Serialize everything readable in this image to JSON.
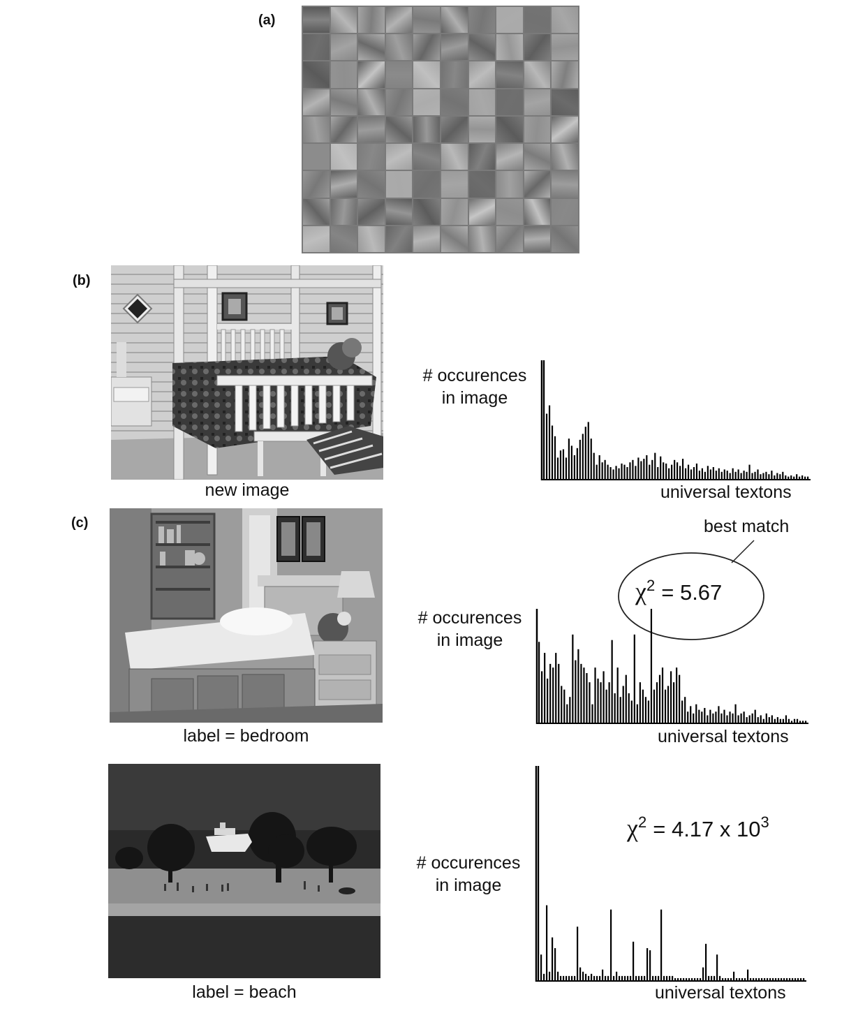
{
  "panels": {
    "a_label": "(a)",
    "b_label": "(b)",
    "c_label": "(c)"
  },
  "captions": {
    "new_image": "new image",
    "bedroom": "label = bedroom",
    "beach": "label = beach"
  },
  "axis": {
    "ylabel_line1": "# occurences",
    "ylabel_line2": "in image",
    "xlabel": "universal textons"
  },
  "annotations": {
    "best_match": "best match",
    "chi_symbol": "χ",
    "chi_exp": "2",
    "chi_bedroom_value": "= 5.67",
    "chi_beach_value": "=  4.17 x 10",
    "chi_beach_exp": "3"
  },
  "chart_data": [
    {
      "type": "bar",
      "xlabel": "universal textons",
      "ylabel": "# occurences in image",
      "values": [
        100,
        55,
        62,
        45,
        36,
        18,
        24,
        25,
        18,
        34,
        28,
        20,
        26,
        33,
        38,
        44,
        48,
        34,
        22,
        12,
        20,
        14,
        16,
        12,
        10,
        8,
        11,
        9,
        13,
        12,
        10,
        14,
        16,
        11,
        18,
        15,
        17,
        20,
        12,
        16,
        22,
        10,
        19,
        14,
        13,
        9,
        12,
        16,
        14,
        11,
        17,
        9,
        12,
        8,
        10,
        13,
        7,
        9,
        6,
        11,
        8,
        10,
        7,
        9,
        6,
        8,
        7,
        5,
        9,
        6,
        8,
        5,
        7,
        6,
        12,
        5,
        6,
        8,
        4,
        5,
        6,
        4,
        7,
        3,
        5,
        4,
        6,
        3,
        2,
        3,
        2,
        4,
        2,
        3,
        2,
        2
      ]
    },
    {
      "type": "bar",
      "xlabel": "universal textons",
      "ylabel": "# occurences in image",
      "values": [
        44,
        28,
        38,
        24,
        32,
        30,
        38,
        32,
        20,
        18,
        10,
        14,
        48,
        34,
        40,
        32,
        30,
        27,
        22,
        10,
        30,
        24,
        22,
        28,
        18,
        22,
        45,
        16,
        30,
        14,
        20,
        26,
        16,
        12,
        48,
        10,
        22,
        18,
        14,
        12,
        62,
        18,
        22,
        26,
        30,
        18,
        20,
        28,
        22,
        30,
        26,
        12,
        14,
        6,
        9,
        5,
        10,
        7,
        6,
        8,
        4,
        7,
        5,
        6,
        9,
        5,
        7,
        4,
        6,
        5,
        10,
        4,
        5,
        6,
        3,
        4,
        5,
        7,
        3,
        4,
        2,
        5,
        3,
        4,
        2,
        3,
        2,
        2,
        4,
        2,
        1,
        2,
        2,
        1,
        1,
        1
      ]
    },
    {
      "type": "bar",
      "xlabel": "universal textons",
      "ylabel": "# occurences in image",
      "values": [
        100,
        12,
        3,
        35,
        4,
        20,
        15,
        4,
        2,
        2,
        2,
        2,
        2,
        2,
        25,
        6,
        4,
        3,
        2,
        3,
        2,
        2,
        2,
        5,
        2,
        2,
        33,
        2,
        4,
        2,
        2,
        2,
        2,
        2,
        18,
        2,
        2,
        2,
        2,
        15,
        14,
        2,
        2,
        2,
        33,
        2,
        2,
        2,
        2,
        1,
        1,
        1,
        1,
        1,
        1,
        1,
        1,
        1,
        1,
        6,
        17,
        2,
        2,
        2,
        12,
        2,
        1,
        1,
        1,
        1,
        4,
        1,
        1,
        1,
        1,
        5,
        1,
        1,
        1,
        1,
        1,
        1,
        1,
        1,
        1,
        1,
        1,
        1,
        1,
        1,
        1,
        1,
        1,
        1,
        1,
        1
      ]
    }
  ]
}
